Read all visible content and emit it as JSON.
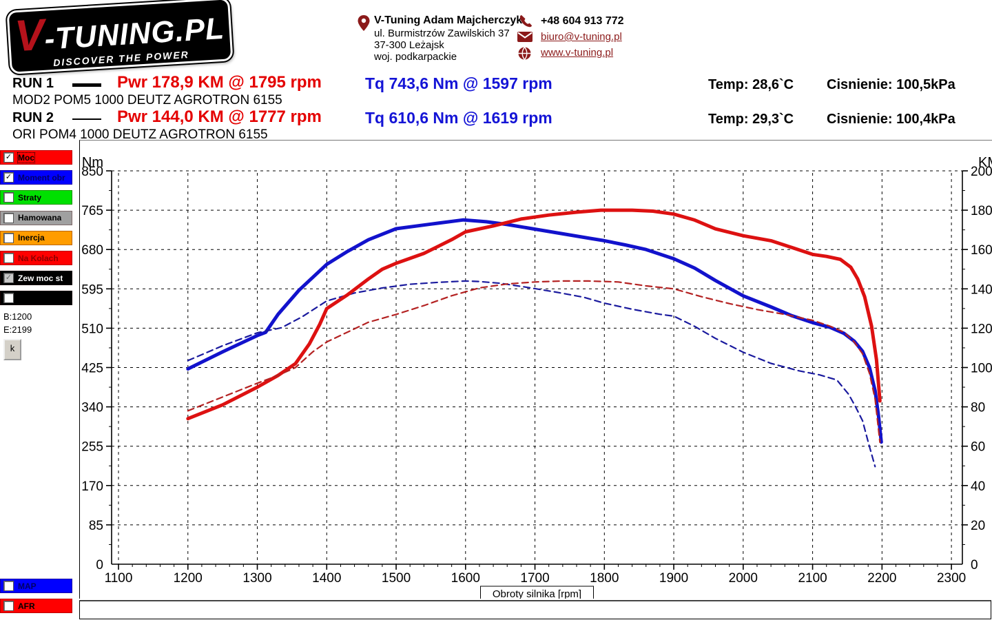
{
  "logo": {
    "brand_v": "V",
    "brand_rest": "-TUNING.PL",
    "tagline": "DISCOVER THE POWER"
  },
  "contact": {
    "name": "V-Tuning Adam Majcherczyk",
    "address1": "ul. Burmistrzów Zawilskich 37",
    "address2": "37-300 Leżajsk",
    "address3": "woj. podkarpackie",
    "phone": "+48 604 913 772",
    "email": "biuro@v-tuning.pl",
    "website": "www.v-tuning.pl"
  },
  "runs": [
    {
      "label": "RUN 1",
      "pwr": "Pwr  178,9 KM @ 1795 rpm",
      "tq": "Tq 743,6 Nm @ 1597 rpm",
      "temp": "Temp: 28,6`C",
      "pressure": "Cisnienie: 100,5kPa",
      "vehicle": "MOD2 POM5 1000 DEUTZ AGROTRON 6155"
    },
    {
      "label": "RUN 2",
      "pwr": "Pwr  144,0 KM @ 1777 rpm",
      "tq": "Tq 610,6 Nm @ 1619 rpm",
      "temp": "Temp: 29,3`C",
      "pressure": "Cisnienie: 100,4kPa",
      "vehicle": "ORI POM4 1000 DEUTZ AGROTRON 6155"
    }
  ],
  "sidebar": {
    "channels": [
      {
        "label": "Moc",
        "color": "#ff0000",
        "text_color": "#000000",
        "checked": true,
        "disabled": false,
        "focused": true
      },
      {
        "label": "Moment obr",
        "color": "#0000ff",
        "text_color": "#000066",
        "checked": true,
        "disabled": false,
        "focused": false
      },
      {
        "label": "Straty",
        "color": "#00e000",
        "text_color": "#000000",
        "checked": false,
        "disabled": false,
        "focused": false
      },
      {
        "label": "Hamowana",
        "color": "#a0a0a0",
        "text_color": "#000000",
        "checked": false,
        "disabled": false,
        "focused": false
      },
      {
        "label": "Inercja",
        "color": "#ff9c00",
        "text_color": "#000000",
        "checked": false,
        "disabled": false,
        "focused": false
      },
      {
        "label": "Na Kolach",
        "color": "#ff0000",
        "text_color": "#8b0000",
        "checked": false,
        "disabled": false,
        "focused": false
      },
      {
        "label": "Zew moc st",
        "color": "#000000",
        "text_color": "#ffffff",
        "checked": true,
        "disabled": true,
        "focused": false
      },
      {
        "label": "",
        "color": "#000000",
        "text_color": "#ffffff",
        "checked": false,
        "disabled": false,
        "focused": false
      }
    ],
    "begin": "B:1200",
    "end": "E:2199",
    "k_button": "k",
    "bottom_channels": [
      {
        "label": "MAP",
        "color": "#0000ff",
        "text_color": "#000066",
        "checked": false
      },
      {
        "label": "AFR",
        "color": "#ff0000",
        "text_color": "#000000",
        "checked": false
      }
    ]
  },
  "chart_data": {
    "type": "line",
    "xlabel": "Obroty silnika [rpm]",
    "x_ticks": [
      1100,
      1200,
      1300,
      1400,
      1500,
      1600,
      1700,
      1800,
      1900,
      2000,
      2100,
      2200,
      2300
    ],
    "x_minor_step": 20,
    "left_axis": {
      "label": "Nm",
      "range": [
        0,
        850
      ],
      "major_step": 85
    },
    "right_axis": {
      "label": "KM",
      "range": [
        0,
        200
      ],
      "major_step": 20
    },
    "grid": "dashed",
    "series": [
      {
        "name": "moment-mod-run1",
        "axis": "left",
        "style": "solid",
        "color": "#1212cc",
        "width": 5,
        "points": [
          [
            1200,
            422
          ],
          [
            1250,
            459
          ],
          [
            1300,
            494
          ],
          [
            1312,
            501
          ],
          [
            1330,
            540
          ],
          [
            1360,
            592
          ],
          [
            1400,
            648
          ],
          [
            1430,
            676
          ],
          [
            1460,
            701
          ],
          [
            1500,
            725
          ],
          [
            1550,
            735
          ],
          [
            1597,
            744
          ],
          [
            1630,
            740
          ],
          [
            1660,
            734
          ],
          [
            1700,
            724
          ],
          [
            1740,
            714
          ],
          [
            1780,
            704
          ],
          [
            1800,
            699
          ],
          [
            1830,
            690
          ],
          [
            1860,
            680
          ],
          [
            1900,
            660
          ],
          [
            1930,
            640
          ],
          [
            1960,
            613
          ],
          [
            2000,
            580
          ],
          [
            2040,
            556
          ],
          [
            2070,
            537
          ],
          [
            2100,
            522
          ],
          [
            2125,
            512
          ],
          [
            2145,
            499
          ],
          [
            2160,
            482
          ],
          [
            2172,
            460
          ],
          [
            2182,
            425
          ],
          [
            2190,
            375
          ],
          [
            2195,
            320
          ],
          [
            2199,
            264
          ]
        ]
      },
      {
        "name": "moment-ori-run2",
        "axis": "left",
        "style": "dashed",
        "color": "#1a1a9e",
        "width": 2.2,
        "points": [
          [
            1200,
            440
          ],
          [
            1250,
            472
          ],
          [
            1300,
            500
          ],
          [
            1335,
            511
          ],
          [
            1365,
            535
          ],
          [
            1400,
            569
          ],
          [
            1440,
            586
          ],
          [
            1480,
            597
          ],
          [
            1520,
            605
          ],
          [
            1560,
            609
          ],
          [
            1600,
            612
          ],
          [
            1619,
            611
          ],
          [
            1650,
            607
          ],
          [
            1690,
            598
          ],
          [
            1730,
            588
          ],
          [
            1770,
            577
          ],
          [
            1800,
            564
          ],
          [
            1840,
            551
          ],
          [
            1880,
            540
          ],
          [
            1900,
            536
          ],
          [
            1930,
            514
          ],
          [
            1960,
            488
          ],
          [
            2000,
            458
          ],
          [
            2040,
            434
          ],
          [
            2080,
            418
          ],
          [
            2110,
            409
          ],
          [
            2135,
            398
          ],
          [
            2152,
            367
          ],
          [
            2162,
            340
          ],
          [
            2172,
            310
          ],
          [
            2181,
            259
          ],
          [
            2190,
            211
          ]
        ]
      },
      {
        "name": "moc-mod-run1",
        "axis": "right",
        "style": "solid",
        "color": "#dd1111",
        "width": 5,
        "points": [
          [
            1200,
            74
          ],
          [
            1250,
            81
          ],
          [
            1300,
            90
          ],
          [
            1330,
            96
          ],
          [
            1355,
            102
          ],
          [
            1375,
            112
          ],
          [
            1390,
            122
          ],
          [
            1400,
            130
          ],
          [
            1430,
            137
          ],
          [
            1460,
            145
          ],
          [
            1480,
            150
          ],
          [
            1500,
            153
          ],
          [
            1540,
            158
          ],
          [
            1580,
            165
          ],
          [
            1600,
            169
          ],
          [
            1640,
            172
          ],
          [
            1680,
            175.5
          ],
          [
            1720,
            177.5
          ],
          [
            1760,
            179
          ],
          [
            1795,
            180
          ],
          [
            1840,
            180
          ],
          [
            1870,
            179.5
          ],
          [
            1900,
            178
          ],
          [
            1930,
            175
          ],
          [
            1960,
            170.5
          ],
          [
            2000,
            167
          ],
          [
            2040,
            164.5
          ],
          [
            2070,
            161
          ],
          [
            2100,
            157.5
          ],
          [
            2120,
            156.5
          ],
          [
            2140,
            155
          ],
          [
            2155,
            151
          ],
          [
            2165,
            145
          ],
          [
            2175,
            136
          ],
          [
            2185,
            121
          ],
          [
            2192,
            104
          ],
          [
            2197,
            83
          ]
        ]
      },
      {
        "name": "moc-ori-run2",
        "axis": "right",
        "style": "dashed",
        "color": "#b42222",
        "width": 2.2,
        "points": [
          [
            1200,
            78
          ],
          [
            1250,
            85
          ],
          [
            1300,
            92
          ],
          [
            1330,
            96
          ],
          [
            1355,
            100
          ],
          [
            1380,
            108
          ],
          [
            1400,
            113
          ],
          [
            1430,
            118
          ],
          [
            1460,
            123
          ],
          [
            1500,
            127
          ],
          [
            1540,
            131.5
          ],
          [
            1580,
            136.5
          ],
          [
            1620,
            140.5
          ],
          [
            1660,
            142.5
          ],
          [
            1700,
            143.5
          ],
          [
            1740,
            144
          ],
          [
            1777,
            144
          ],
          [
            1820,
            143.5
          ],
          [
            1860,
            141.5
          ],
          [
            1900,
            140
          ],
          [
            1940,
            136
          ],
          [
            1980,
            132.5
          ],
          [
            2020,
            129.5
          ],
          [
            2060,
            127
          ],
          [
            2100,
            124
          ],
          [
            2125,
            121
          ],
          [
            2145,
            118
          ],
          [
            2160,
            113
          ],
          [
            2172,
            107
          ],
          [
            2182,
            97
          ],
          [
            2190,
            84
          ],
          [
            2197,
            62
          ]
        ]
      }
    ]
  }
}
